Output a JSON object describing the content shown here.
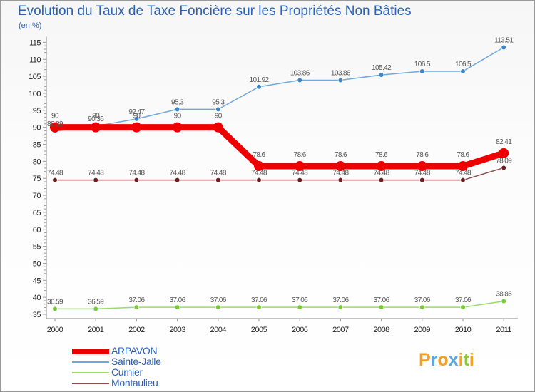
{
  "title": "Evolution du Taux de Taxe Foncière sur les Propriétés Non Bâties",
  "unit_label": "(en %)",
  "logo": {
    "letters": [
      "P",
      "r",
      "o",
      "x",
      "i",
      "t",
      "i"
    ],
    "colors": [
      "#f4a021",
      "#5aa8e0",
      "#f4a021",
      "#5aa8e0",
      "#f4a021",
      "#8bc43f",
      "#f4a021"
    ]
  },
  "chart_data": {
    "type": "line",
    "x": [
      "2000",
      "2001",
      "2002",
      "2003",
      "2004",
      "2005",
      "2006",
      "2007",
      "2008",
      "2009",
      "2010",
      "2011"
    ],
    "ylim": [
      35,
      115
    ],
    "yticks": [
      "35",
      "40",
      "45",
      "50",
      "55",
      "60",
      "65",
      "70",
      "75",
      "80",
      "85",
      "90",
      "95",
      "100",
      "105",
      "110",
      "115"
    ],
    "grid": false,
    "legend_position": "bottom-left",
    "series": [
      {
        "name": "ARPAVON",
        "color": "#ee0000",
        "values": [
          90,
          90,
          90,
          90,
          90,
          78.6,
          78.6,
          78.6,
          78.6,
          78.6,
          78.6,
          82.41
        ],
        "labels": [
          "90",
          "90",
          "90",
          "90",
          "90",
          "78.6",
          "78.6",
          "78.6",
          "78.6",
          "78.6",
          "78.6",
          "82.41"
        ]
      },
      {
        "name": "Sainte-Jalle",
        "color": "#6fa8dc",
        "marker": "#3d85c6",
        "values": [
          88.89,
          90.36,
          92.47,
          95.3,
          95.3,
          101.92,
          103.86,
          103.86,
          105.42,
          106.5,
          106.5,
          113.51
        ],
        "labels": [
          "88.89",
          "90.36",
          "92.47",
          "95.3",
          "95.3",
          "101.92",
          "103.86",
          "103.86",
          "105.42",
          "106.5",
          "106.5",
          "113.51"
        ]
      },
      {
        "name": "Curnier",
        "color": "#99dd66",
        "marker": "#77cc33",
        "values": [
          36.59,
          36.59,
          37.06,
          37.06,
          37.06,
          37.06,
          37.06,
          37.06,
          37.06,
          37.06,
          37.06,
          38.86
        ],
        "labels": [
          "36.59",
          "36.59",
          "37.06",
          "37.06",
          "37.06",
          "37.06",
          "37.06",
          "37.06",
          "37.06",
          "37.06",
          "37.06",
          "38.86"
        ]
      },
      {
        "name": "Montaulieu",
        "color": "#8b4c4c",
        "marker": "#6a1f1f",
        "values": [
          74.48,
          74.48,
          74.48,
          74.48,
          74.48,
          74.48,
          74.48,
          74.48,
          74.48,
          74.48,
          74.48,
          78.09
        ],
        "labels": [
          "74.48",
          "74.48",
          "74.48",
          "74.48",
          "74.48",
          "74.48",
          "74.48",
          "74.48",
          "74.48",
          "74.48",
          "74.48",
          "78.09"
        ]
      }
    ]
  }
}
